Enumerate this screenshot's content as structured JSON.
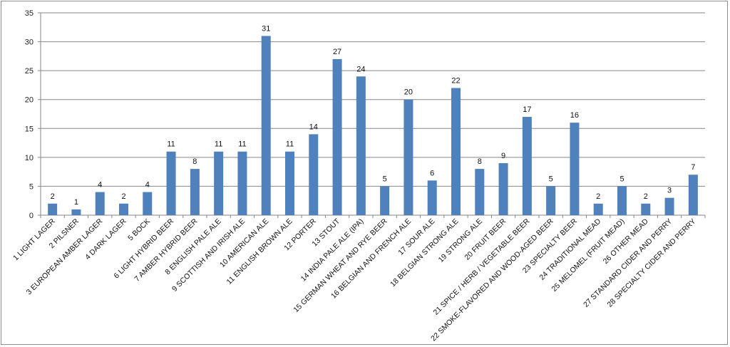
{
  "chart_data": {
    "type": "bar",
    "title": "",
    "xlabel": "",
    "ylabel": "",
    "ylim": [
      0,
      35
    ],
    "yticks": [
      0,
      5,
      10,
      15,
      20,
      25,
      30,
      35
    ],
    "grid": true,
    "legend": "none",
    "bar_color": "#4f81bd",
    "gridline_color": "#868686",
    "categories": [
      "1 LIGHT LAGER",
      "2 PILSNER",
      "3 EUROPEAN AMBER LAGER",
      "4 DARK LAGER",
      "5 BOCK",
      "6 LIGHT HYBRID BEER",
      "7 AMBER HYBRID BEER",
      "8 ENGLISH PALE ALE",
      "9 SCOTTISH AND IRISH ALE",
      "10 AMERICAN ALE",
      "11 ENGLISH BROWN ALE",
      "12 PORTER",
      "13 STOUT",
      "14 INDIA PALE ALE (IPA)",
      "15 GERMAN WHEAT AND RYE BEER",
      "16 BELGIAN AND FRENCH ALE",
      "17 SOUR ALE",
      "18 BELGIAN STRONG ALE",
      "19 STRONG ALE",
      "20 FRUIT BEER",
      "21 SPICE / HERB / VEGETABLE BEER",
      "22 SMOKE-FLAVORED AND WOOD-AGED BEER",
      "23 SPECIALTY BEER",
      "24 TRADITIONAL MEAD",
      "25 MELOMEL (FRUIT MEAD)",
      "26 OTHER MEAD",
      "27 STANDARD CIDER AND PERRY",
      "28 SPECIALTY CIDER AND PERRY"
    ],
    "values": [
      2,
      1,
      4,
      2,
      4,
      11,
      8,
      11,
      11,
      31,
      11,
      14,
      27,
      24,
      5,
      20,
      6,
      22,
      8,
      9,
      17,
      5,
      16,
      2,
      5,
      2,
      3,
      7
    ]
  }
}
